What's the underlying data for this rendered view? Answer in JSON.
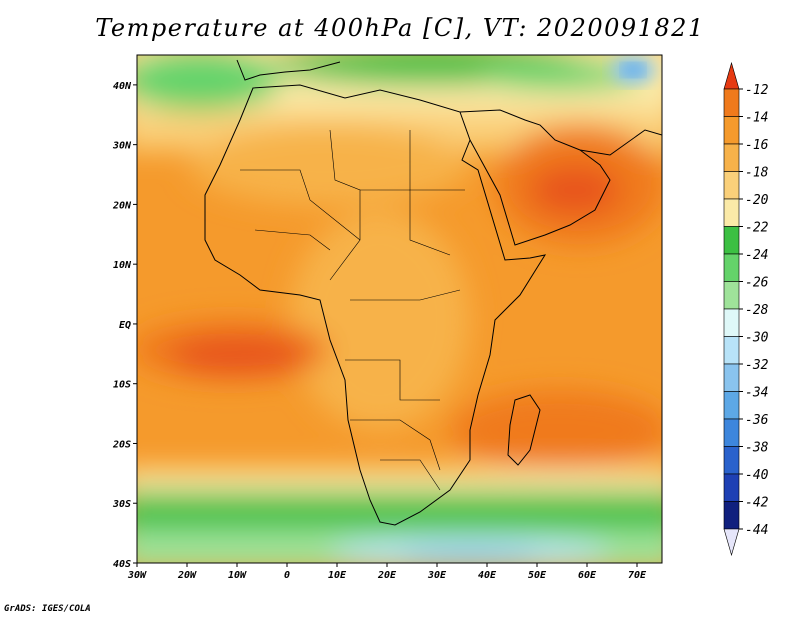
{
  "title": "Temperature at 400hPa [C], VT: 2020091821",
  "credit": "GrADS: IGES/COLA",
  "map": {
    "region": "Africa and surrounding oceans",
    "lon_range": [
      -30,
      75
    ],
    "lat_range": [
      -40,
      45
    ],
    "lon_ticks": [
      "30W",
      "20W",
      "10W",
      "0",
      "10E",
      "20E",
      "30E",
      "40E",
      "50E",
      "60E",
      "70E"
    ],
    "lat_ticks": [
      "40N",
      "30N",
      "20N",
      "10N",
      "EQ",
      "10S",
      "20S",
      "30S",
      "40S"
    ]
  },
  "colorbar": {
    "labels": [
      "-12",
      "-14",
      "-16",
      "-18",
      "-20",
      "-22",
      "-24",
      "-26",
      "-28",
      "-30",
      "-32",
      "-34",
      "-36",
      "-38",
      "-40",
      "-42",
      "-44"
    ],
    "colors": [
      "#e8541e",
      "#f07a1c",
      "#f59a2c",
      "#f7b24a",
      "#fad07a",
      "#fbeaa8",
      "#3cc043",
      "#64d36a",
      "#9fe39a",
      "#dff8f8",
      "#b8e3f8",
      "#8ac4ee",
      "#5da8e6",
      "#3d86dc",
      "#2a62cc",
      "#1e40b4",
      "#10207e"
    ],
    "top_arrow_color": "#e63a12",
    "bottom_arrow_color": "#e6e6fa"
  }
}
